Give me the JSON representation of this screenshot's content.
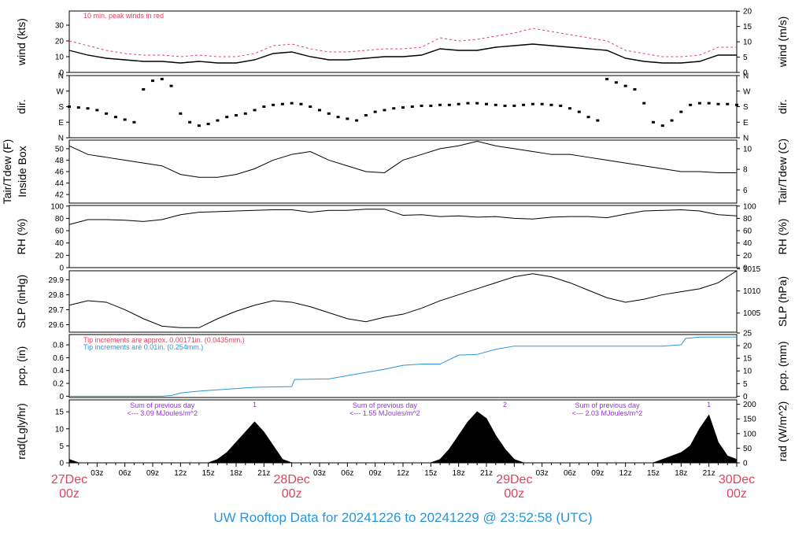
{
  "title": "UW Rooftop Data for 20241226  to  20241229 @ 23:52:58  (UTC)",
  "colors": {
    "peak": "#e0435f",
    "pcp_blue": "#2b95d6",
    "purple": "#9b30d9",
    "date": "#e0435f",
    "title": "#2b95d6",
    "line": "#000000"
  },
  "x_axis": {
    "start_label": "27Dec",
    "hours_total": 72,
    "hour_ticks": [
      "00z",
      "03z",
      "06z",
      "09z",
      "12z",
      "15z",
      "18z",
      "21z",
      "00z",
      "03z",
      "06z",
      "09z",
      "12z",
      "15z",
      "18z",
      "21z",
      "00z",
      "03z",
      "06z",
      "09z",
      "12z",
      "15z",
      "18z",
      "21z",
      "00z"
    ],
    "day_labels": [
      {
        "hour": 0,
        "date": "27Dec",
        "hz": "00z"
      },
      {
        "hour": 24,
        "date": "28Dec",
        "hz": "00z"
      },
      {
        "hour": 48,
        "date": "29Dec",
        "hz": "00z"
      },
      {
        "hour": 72,
        "date": "30Dec",
        "hz": "00z"
      }
    ]
  },
  "chart_data": [
    {
      "id": "wind",
      "type": "line",
      "ylabel_left": "wind (kts)",
      "ylabel_right": "wind (m/s)",
      "ylim": [
        0,
        39
      ],
      "yticks": [
        0,
        10,
        20,
        30
      ],
      "yticks_right": [
        0,
        5,
        10,
        15,
        20
      ],
      "annotation": "10 min. peak winds in red",
      "series": [
        {
          "name": "wind",
          "color": "#000000",
          "x": [
            0,
            2,
            4,
            6,
            8,
            10,
            12,
            14,
            16,
            18,
            20,
            22,
            24,
            26,
            28,
            30,
            32,
            34,
            36,
            38,
            40,
            42,
            44,
            46,
            48,
            50,
            52,
            54,
            56,
            58,
            60,
            62,
            64,
            66,
            68,
            70,
            72
          ],
          "y": [
            14,
            11,
            9,
            8,
            7,
            7,
            6,
            7,
            6,
            6,
            8,
            12,
            13,
            10,
            8,
            8,
            9,
            10,
            10,
            11,
            15,
            14,
            14,
            16,
            17,
            18,
            17,
            16,
            15,
            14,
            9,
            7,
            6,
            6,
            7,
            11,
            11
          ]
        },
        {
          "name": "10 min. peak",
          "color": "#e0435f",
          "x": [
            0,
            2,
            4,
            6,
            8,
            10,
            12,
            14,
            16,
            18,
            20,
            22,
            24,
            26,
            28,
            30,
            32,
            34,
            36,
            38,
            40,
            42,
            44,
            46,
            48,
            50,
            52,
            54,
            56,
            58,
            60,
            62,
            64,
            66,
            68,
            70,
            72
          ],
          "y": [
            20,
            17,
            14,
            12,
            11,
            11,
            10,
            11,
            10,
            10,
            12,
            17,
            18,
            15,
            13,
            13,
            14,
            15,
            15,
            16,
            22,
            20,
            21,
            23,
            25,
            28,
            26,
            24,
            22,
            20,
            14,
            12,
            10,
            10,
            11,
            16,
            16
          ]
        }
      ]
    },
    {
      "id": "dir",
      "type": "scatter",
      "ylabel_left": "dir.",
      "ylabel_right": "dir.",
      "ylim": [
        0,
        360
      ],
      "ytick_labels": [
        "N",
        "E",
        "S",
        "W",
        "N"
      ],
      "yticks": [
        0,
        90,
        180,
        270,
        360
      ],
      "series": [
        {
          "name": "dir",
          "color": "#000000",
          "x": [
            0,
            1,
            2,
            3,
            4,
            5,
            6,
            7,
            8,
            9,
            10,
            11,
            12,
            13,
            14,
            15,
            16,
            17,
            18,
            19,
            20,
            21,
            22,
            23,
            24,
            25,
            26,
            27,
            28,
            29,
            30,
            31,
            32,
            33,
            34,
            35,
            36,
            37,
            38,
            39,
            40,
            41,
            42,
            43,
            44,
            45,
            46,
            47,
            48,
            49,
            50,
            51,
            52,
            53,
            54,
            55,
            56,
            57,
            58,
            59,
            60,
            61,
            62,
            63,
            64,
            65,
            66,
            67,
            68,
            69,
            70,
            71,
            72
          ],
          "y": [
            180,
            175,
            170,
            160,
            140,
            120,
            105,
            90,
            280,
            330,
            340,
            300,
            140,
            90,
            70,
            80,
            100,
            120,
            130,
            140,
            160,
            180,
            190,
            195,
            200,
            195,
            180,
            160,
            140,
            120,
            110,
            100,
            130,
            150,
            160,
            170,
            175,
            180,
            185,
            185,
            190,
            190,
            195,
            200,
            200,
            195,
            190,
            185,
            185,
            190,
            195,
            195,
            190,
            185,
            170,
            150,
            120,
            100,
            340,
            320,
            300,
            280,
            200,
            90,
            70,
            100,
            150,
            190,
            200,
            200,
            195,
            195,
            190
          ]
        }
      ]
    },
    {
      "id": "temp",
      "type": "line",
      "ylabel_left": "Tair/Tdew (F)",
      "ylabel_left2": "Inside Box",
      "ylabel_right": "Tair/Tdew (C)",
      "ylim": [
        40.5,
        51.5
      ],
      "yticks": [
        42,
        44,
        46,
        48,
        50
      ],
      "yticks_right": [
        6,
        8,
        10
      ],
      "series": [
        {
          "name": "Tair",
          "color": "#000000",
          "x": [
            0,
            2,
            4,
            6,
            8,
            10,
            12,
            14,
            16,
            18,
            20,
            22,
            24,
            26,
            28,
            30,
            32,
            34,
            36,
            38,
            40,
            42,
            44,
            46,
            48,
            50,
            52,
            54,
            56,
            58,
            60,
            62,
            64,
            66,
            68,
            70,
            72
          ],
          "y": [
            50.5,
            49,
            48.5,
            48,
            47.5,
            47,
            45.5,
            45,
            45,
            45.5,
            46.5,
            48,
            49,
            49.5,
            48,
            47,
            46,
            45.8,
            48,
            49,
            50,
            50.5,
            51.3,
            50.5,
            50,
            49.5,
            49,
            49,
            48.5,
            48,
            47.5,
            47,
            46.5,
            46,
            46,
            45.8,
            45.8
          ]
        }
      ]
    },
    {
      "id": "rh",
      "type": "line",
      "ylabel_left": "RH (%)",
      "ylabel_right": "RH (%)",
      "ylim": [
        0,
        101
      ],
      "yticks": [
        0,
        20,
        40,
        60,
        80,
        100
      ],
      "series": [
        {
          "name": "RH",
          "color": "#000000",
          "x": [
            0,
            2,
            4,
            6,
            8,
            10,
            12,
            14,
            16,
            18,
            20,
            22,
            24,
            26,
            28,
            30,
            32,
            34,
            36,
            38,
            40,
            42,
            44,
            46,
            48,
            50,
            52,
            54,
            56,
            58,
            60,
            62,
            64,
            66,
            68,
            70,
            72
          ],
          "y": [
            70,
            78,
            78,
            77,
            75,
            78,
            86,
            90,
            91,
            92,
            93,
            94,
            94,
            90,
            93,
            93,
            95,
            95,
            85,
            86,
            83,
            84,
            82,
            83,
            80,
            79,
            82,
            83,
            83,
            81,
            87,
            92,
            93,
            94,
            92,
            86,
            84
          ]
        }
      ]
    },
    {
      "id": "slp",
      "type": "line",
      "ylabel_left": "SLP (inHg)",
      "ylabel_right": "SLP (hPa)",
      "ylim": [
        29.55,
        29.96
      ],
      "yticks": [
        29.6,
        29.7,
        29.8,
        29.9
      ],
      "yticks_right": [
        1005,
        1010,
        1015
      ],
      "series": [
        {
          "name": "SLP",
          "color": "#000000",
          "x": [
            0,
            2,
            4,
            6,
            8,
            10,
            12,
            14,
            16,
            18,
            20,
            22,
            24,
            26,
            28,
            30,
            32,
            34,
            36,
            38,
            40,
            42,
            44,
            46,
            48,
            50,
            52,
            54,
            56,
            58,
            60,
            62,
            64,
            66,
            68,
            70,
            72
          ],
          "y": [
            29.73,
            29.76,
            29.75,
            29.7,
            29.64,
            29.59,
            29.58,
            29.58,
            29.64,
            29.69,
            29.73,
            29.76,
            29.75,
            29.72,
            29.68,
            29.64,
            29.62,
            29.65,
            29.67,
            29.71,
            29.76,
            29.8,
            29.84,
            29.88,
            29.92,
            29.94,
            29.92,
            29.88,
            29.83,
            29.78,
            29.75,
            29.77,
            29.8,
            29.82,
            29.84,
            29.88,
            29.96
          ]
        }
      ]
    },
    {
      "id": "pcp",
      "type": "line",
      "ylabel_left": "pcp. (in)",
      "ylabel_right": "pcp. (mm)",
      "ylim": [
        -0.02,
        0.96
      ],
      "yticks": [
        0.0,
        0.2,
        0.4,
        0.6,
        0.8
      ],
      "yticks_right": [
        0,
        5,
        10,
        15,
        20,
        25
      ],
      "annotations": [
        "Tip increments are approx. 0.00171in. (0.0435mm.)",
        "Tip increments are 0.01in. (0.254mm.)"
      ],
      "series": [
        {
          "name": "pcp",
          "color": "#2b95d6",
          "x": [
            0,
            10,
            11,
            12,
            14,
            16,
            18,
            20,
            24,
            24.3,
            28,
            30,
            32,
            34,
            36,
            38,
            40,
            42,
            44,
            46,
            48,
            50,
            52,
            54,
            56,
            58,
            60,
            62,
            64,
            66,
            66.5,
            68,
            70,
            72
          ],
          "y": [
            0,
            0,
            0.01,
            0.05,
            0.08,
            0.1,
            0.12,
            0.14,
            0.15,
            0.26,
            0.27,
            0.32,
            0.37,
            0.42,
            0.48,
            0.5,
            0.5,
            0.64,
            0.65,
            0.73,
            0.78,
            0.78,
            0.78,
            0.78,
            0.78,
            0.78,
            0.78,
            0.78,
            0.78,
            0.8,
            0.9,
            0.92,
            0.92,
            0.92
          ]
        }
      ]
    },
    {
      "id": "rad",
      "type": "area",
      "ylabel_left": "rad(Lgly/hr)",
      "ylabel_right": "rad (W/m^2)",
      "ylim": [
        0,
        18.5
      ],
      "yticks": [
        0,
        5,
        10,
        15
      ],
      "yticks_right": [
        0,
        50,
        100,
        150,
        200
      ],
      "day_notes": [
        {
          "hour": 8,
          "text": "Sum of previous day",
          "value": "<--- 3.09 MJoules/m^2",
          "marker": "1",
          "marker_hour": 20
        },
        {
          "hour": 32,
          "text": "Sum of previous day",
          "value": "<--- 1.55 MJoules/m^2",
          "marker": "2",
          "marker_hour": 47
        },
        {
          "hour": 56,
          "text": "Sum of previous day",
          "value": "<--- 2.03 MJoules/m^2",
          "marker": "1",
          "marker_hour": 69
        }
      ],
      "series": [
        {
          "name": "rad",
          "color": "#000000",
          "x": [
            0,
            1,
            2,
            15,
            16,
            17,
            18,
            19,
            20,
            21,
            22,
            23,
            24,
            39,
            40,
            41,
            42,
            43,
            44,
            45,
            46,
            47,
            48,
            49,
            50,
            63,
            64,
            65,
            66,
            67,
            68,
            69,
            70,
            71,
            72
          ],
          "y": [
            1,
            0,
            0,
            0,
            1,
            3,
            6,
            9,
            12,
            9,
            5,
            1,
            0,
            0,
            1,
            4,
            8,
            12,
            15,
            13,
            8,
            4,
            1,
            0,
            0,
            0,
            1,
            2,
            3,
            5,
            10,
            14,
            6,
            2,
            1
          ]
        }
      ]
    }
  ]
}
